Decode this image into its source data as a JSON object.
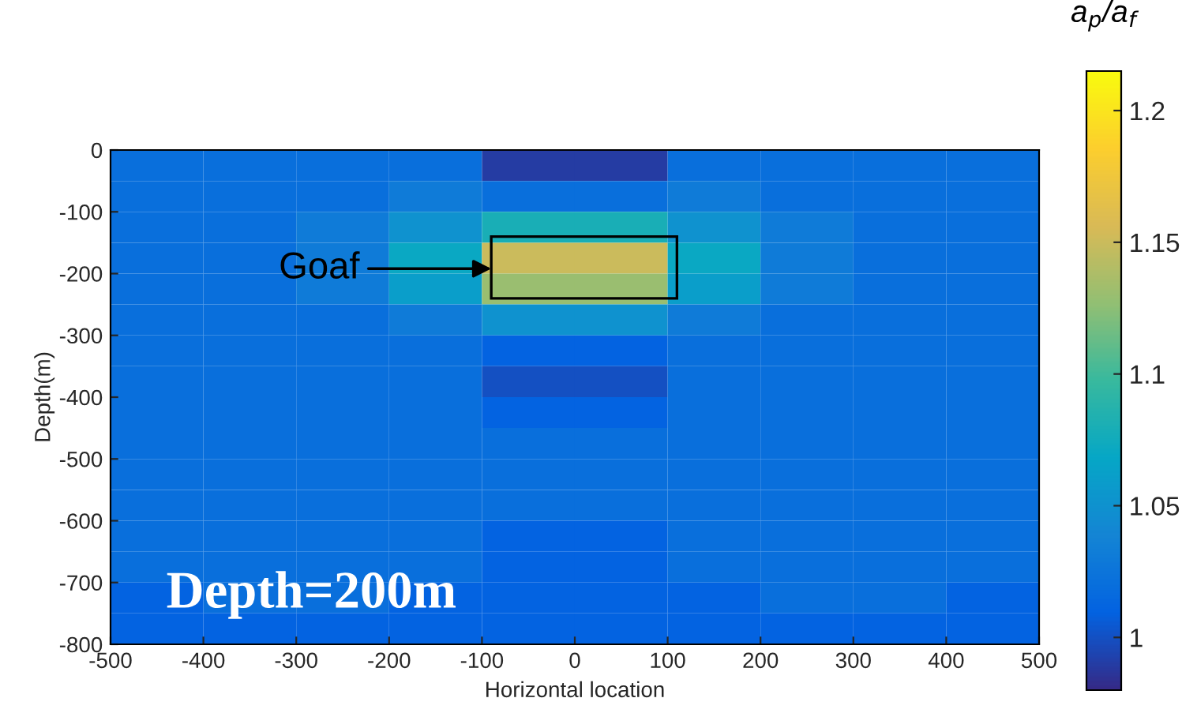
{
  "chart_data": {
    "type": "heatmap",
    "xlabel": "Horizontal location",
    "ylabel": "Depth(m)",
    "clabel": "a$_{p}$/a$_{f}$",
    "x": [
      -450,
      -350,
      -250,
      -150,
      -50,
      50,
      150,
      250,
      350,
      450
    ],
    "y": [
      -25,
      -75,
      -125,
      -175,
      -225,
      -275,
      -325,
      -375,
      -425,
      -475,
      -525,
      -575,
      -625,
      -675,
      -725,
      -775
    ],
    "cells": [
      [
        1.02,
        1.02,
        1.02,
        1.02,
        0.99,
        0.99,
        1.02,
        1.02,
        1.02,
        1.02
      ],
      [
        1.02,
        1.02,
        1.02,
        1.03,
        1.02,
        1.02,
        1.03,
        1.02,
        1.02,
        1.02
      ],
      [
        1.02,
        1.02,
        1.03,
        1.05,
        1.08,
        1.08,
        1.05,
        1.03,
        1.02,
        1.02
      ],
      [
        1.02,
        1.02,
        1.03,
        1.07,
        1.15,
        1.15,
        1.07,
        1.03,
        1.02,
        1.02
      ],
      [
        1.02,
        1.02,
        1.03,
        1.06,
        1.13,
        1.13,
        1.06,
        1.03,
        1.02,
        1.02
      ],
      [
        1.02,
        1.02,
        1.02,
        1.03,
        1.05,
        1.05,
        1.03,
        1.02,
        1.02,
        1.02
      ],
      [
        1.02,
        1.02,
        1.02,
        1.02,
        1.01,
        1.01,
        1.02,
        1.02,
        1.02,
        1.02
      ],
      [
        1.02,
        1.02,
        1.02,
        1.02,
        1.0,
        1.0,
        1.02,
        1.02,
        1.02,
        1.02
      ],
      [
        1.02,
        1.02,
        1.02,
        1.02,
        1.01,
        1.01,
        1.02,
        1.02,
        1.02,
        1.02
      ],
      [
        1.02,
        1.02,
        1.02,
        1.02,
        1.02,
        1.02,
        1.02,
        1.02,
        1.02,
        1.02
      ],
      [
        1.02,
        1.02,
        1.02,
        1.02,
        1.02,
        1.02,
        1.02,
        1.02,
        1.02,
        1.02
      ],
      [
        1.02,
        1.02,
        1.02,
        1.02,
        1.02,
        1.02,
        1.02,
        1.02,
        1.02,
        1.02
      ],
      [
        1.02,
        1.02,
        1.02,
        1.02,
        1.01,
        1.01,
        1.02,
        1.02,
        1.02,
        1.02
      ],
      [
        1.02,
        1.02,
        1.02,
        1.02,
        1.01,
        1.01,
        1.02,
        1.02,
        1.02,
        1.02
      ],
      [
        1.01,
        1.02,
        1.02,
        1.01,
        1.01,
        1.01,
        1.01,
        1.02,
        1.02,
        1.01
      ],
      [
        1.01,
        1.01,
        1.01,
        1.01,
        1.01,
        1.01,
        1.01,
        1.01,
        1.01,
        1.01
      ]
    ],
    "colors": [
      "#352a87",
      "#0363e1",
      "#1485d4",
      "#06a7c6",
      "#38b99e",
      "#92bf73",
      "#d9ba56",
      "#fcce2e",
      "#f9fb0e"
    ],
    "clim": [
      0.98,
      1.215
    ],
    "cticks": [
      1,
      1.05,
      1.1,
      1.15,
      1.2
    ],
    "xlim": [
      -500,
      500
    ],
    "ylim": [
      -800,
      0
    ],
    "xticks": [
      -500,
      -400,
      -300,
      -200,
      -100,
      0,
      100,
      200,
      300,
      400,
      500
    ],
    "yticks": [
      -800,
      -700,
      -600,
      -500,
      -400,
      -300,
      -200,
      -100,
      0
    ],
    "grid": false,
    "annotations": [
      "Goaf",
      "Depth=200m"
    ]
  }
}
